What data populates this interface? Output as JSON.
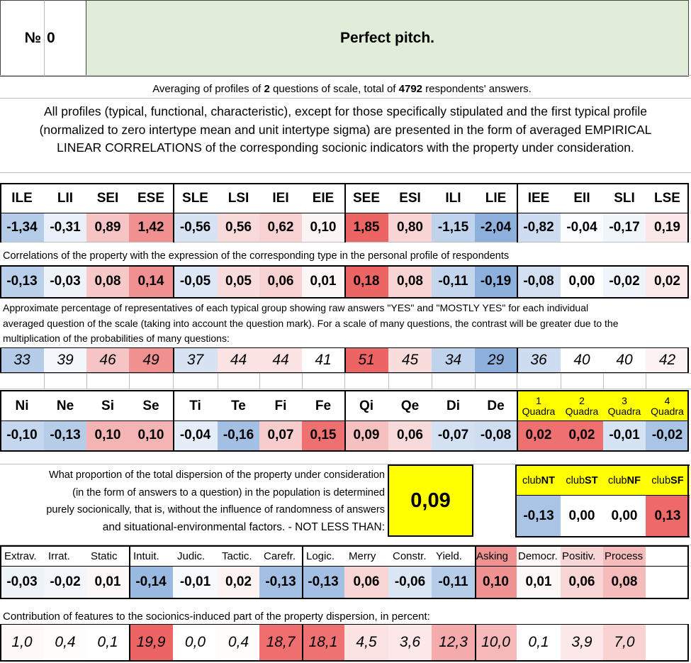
{
  "title": {
    "number_label": "№",
    "number": "0",
    "name": "Perfect pitch."
  },
  "summary": {
    "prefix": "Averaging of profiles of ",
    "questions": "2",
    "middle": " questions of scale, total of ",
    "respondents": "4792",
    "suffix": " respondents' answers."
  },
  "intro": {
    "line1": "All profiles (typical, functional, characteristic), except for those specifically stipulated and the first typical profile",
    "line2": "(normalized to zero intertype mean and unit intertype sigma) are presented in the form of averaged EMPIRICAL",
    "line3": "LINEAR CORRELATIONS of the corresponding socionic indicators with the property under consideration."
  },
  "types": {
    "labels": [
      "ILE",
      "LII",
      "SEI",
      "ESE",
      "SLE",
      "LSI",
      "IEI",
      "EIE",
      "SEE",
      "ESI",
      "ILI",
      "LIE",
      "IEE",
      "EII",
      "SLI",
      "LSE"
    ],
    "profile": [
      "-1,34",
      "-0,31",
      "0,89",
      "1,42",
      "-0,56",
      "0,56",
      "0,62",
      "0,10",
      "1,85",
      "0,80",
      "-1,15",
      "-2,04",
      "-0,82",
      "-0,04",
      "-0,17",
      "0,19"
    ],
    "profile_colors": [
      "#b4cce8",
      "#e9f0f9",
      "#f6c4c4",
      "#f19090",
      "#d7e3f3",
      "#f8dada",
      "#f8d2d2",
      "#fbf4f4",
      "#ed6464",
      "#f8d4d4",
      "#bfd3ec",
      "#8eb0dc",
      "#cddcf0",
      "#fbfcfe",
      "#f0f5fb",
      "#fbe7e7"
    ],
    "corr_caption": "Correlations of the property with the expression of the corresponding type in the personal profile of respondents",
    "correlations": [
      "-0,13",
      "-0,03",
      "0,08",
      "0,14",
      "-0,05",
      "0,05",
      "0,06",
      "0,01",
      "0,18",
      "0,08",
      "-0,11",
      "-0,19",
      "-0,08",
      "0,00",
      "-0,02",
      "0,02"
    ],
    "corr_colors": [
      "#b9cfea",
      "#eef3fa",
      "#f7c8c8",
      "#f19090",
      "#dde7f5",
      "#f9dcdc",
      "#f8d2d2",
      "#fdf6f6",
      "#ed6464",
      "#f8d4d4",
      "#c3d6ed",
      "#8eb0dc",
      "#d1dff1",
      "#ffffff",
      "#f0f5fb",
      "#fce9e9"
    ],
    "pct_caption_line1": "Approximate percentage of representatives of each typical group showing raw answers \"YES\" and \"MOSTLY YES\" for each individual",
    "pct_caption_line2": "averaged question of the scale (taking into account the question mark). For a scale of many questions, the contrast will be greater due to the",
    "pct_caption_line3": "multiplication of the probabilities of many questions:",
    "percentages": [
      "33",
      "39",
      "46",
      "49",
      "37",
      "44",
      "44",
      "41",
      "51",
      "45",
      "34",
      "29",
      "36",
      "40",
      "40",
      "42"
    ],
    "pct_colors": [
      "#b4cce8",
      "#f3f7fc",
      "#f6c4c4",
      "#f19090",
      "#d7e3f3",
      "#fbe3e3",
      "#fbe3e3",
      "#ffffff",
      "#ed6464",
      "#f9dcdc",
      "#bfd3ec",
      "#8eb0dc",
      "#cddcf0",
      "#ffffff",
      "#ffffff",
      "#fdf2f2"
    ]
  },
  "functions": {
    "labels": [
      "Ni",
      "Ne",
      "Si",
      "Se",
      "Ti",
      "Te",
      "Fi",
      "Fe",
      "Qi",
      "Qe",
      "Di",
      "De"
    ],
    "values": [
      "-0,10",
      "-0,13",
      "0,10",
      "0,10",
      "-0,04",
      "-0,16",
      "0,07",
      "0,15",
      "0,09",
      "0,06",
      "-0,07",
      "-0,08"
    ],
    "colors": [
      "#c5d7ee",
      "#b5cde9",
      "#f4b4b4",
      "#f4b4b4",
      "#e5edf8",
      "#a3bfe3",
      "#f7cccc",
      "#ee7070",
      "#f6c0c0",
      "#f9dada",
      "#d4e1f2",
      "#cfddf0"
    ]
  },
  "quadras": {
    "labels": [
      {
        "num": "1",
        "word": "Quadra"
      },
      {
        "num": "2",
        "word": "Quadra"
      },
      {
        "num": "3",
        "word": "Quadra"
      },
      {
        "num": "4",
        "word": "Quadra"
      }
    ],
    "values": [
      "0,02",
      "0,02",
      "-0,01",
      "-0,02"
    ],
    "colors": [
      "#ee7070",
      "#ee7070",
      "#d6e3f3",
      "#a9c4e5"
    ],
    "header_bg": "#ffff00"
  },
  "dispersion": {
    "line1": "What proportion of the total dispersion of the property under consideration",
    "line2": "(in the form of answers to a question) in the population is determined",
    "line3": "purely socionically, that is, without the influence of randomness of answers",
    "line4": "and situational-environmental factors. - NOT LESS THAN:",
    "value": "0,09",
    "value_bg": "#ffff00"
  },
  "clubs": {
    "labels": [
      {
        "pre": "club",
        "bold": "NT"
      },
      {
        "pre": "club",
        "bold": "ST"
      },
      {
        "pre": "club",
        "bold": "NF"
      },
      {
        "pre": "club",
        "bold": "SF"
      }
    ],
    "values": [
      "-0,13",
      "0,00",
      "0,00",
      "0,13"
    ],
    "colors": [
      "#a9c4e5",
      "#ffffff",
      "#ffffff",
      "#ee6a6a"
    ],
    "header_bg": "#ffff00"
  },
  "traits": {
    "labels": [
      "Extrav.",
      "Irrat.",
      "Static",
      "Intuit.",
      "Judic.",
      "Tactic.",
      "Carefr.",
      "Logic.",
      "Merry",
      "Constr.",
      "Yield.",
      "Asking",
      "Democr.",
      "Positiv.",
      "Process"
    ],
    "values": [
      "-0,03",
      "-0,02",
      "0,01",
      "-0,14",
      "-0,01",
      "0,02",
      "-0,13",
      "-0,13",
      "0,06",
      "-0,06",
      "-0,11",
      "0,10",
      "0,01",
      "0,06",
      "0,08"
    ],
    "colors": [
      "#eef3fa",
      "#f3f7fc",
      "#fdf7f7",
      "#9ab9e1",
      "#f6f9fd",
      "#fdf3f3",
      "#a3bfe3",
      "#a3bfe3",
      "#f9d6d6",
      "#dbe6f4",
      "#b6cde9",
      "#f19292",
      "#fdf7f7",
      "#f9d6d6",
      "#f6bcbc"
    ],
    "contrib_caption": "Contribution of features to the socionics-induced part of the property dispersion, in percent:",
    "contributions": [
      "1,0",
      "0,4",
      "0,1",
      "19,9",
      "0,0",
      "0,4",
      "18,7",
      "18,1",
      "4,5",
      "3,6",
      "12,3",
      "10,0",
      "0,1",
      "3,9",
      "7,0"
    ],
    "contrib_colors": [
      "#fef8f8",
      "#fffcfc",
      "#ffffff",
      "#ed6464",
      "#ffffff",
      "#fffcfc",
      "#ef6e6e",
      "#ef7272",
      "#fbe3e3",
      "#fce8e8",
      "#f5abab",
      "#f6b8b8",
      "#ffffff",
      "#fce8e8",
      "#f9d2d2"
    ]
  }
}
